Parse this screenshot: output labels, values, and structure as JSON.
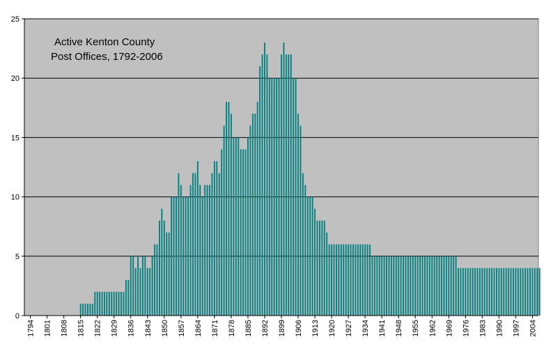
{
  "chart_data": {
    "type": "bar",
    "title_lines": [
      "Active Kenton County",
      "Post Offices, 1792-2006"
    ],
    "xlabel": "",
    "ylabel": "",
    "ylim": [
      0,
      25
    ],
    "yticks": [
      0,
      5,
      10,
      15,
      20,
      25
    ],
    "x_start": 1792,
    "x_end": 2006,
    "xtick_labels": [
      "1794",
      "1801",
      "1808",
      "1815",
      "1822",
      "1829",
      "1836",
      "1843",
      "1850",
      "1857",
      "1864",
      "1871",
      "1878",
      "1885",
      "1892",
      "1899",
      "1906",
      "1913",
      "1920",
      "1927",
      "1934",
      "1941",
      "1948",
      "1955",
      "1962",
      "1969",
      "1976",
      "1983",
      "1990",
      "1997",
      "2004"
    ],
    "grid": true,
    "background_color": "#c0c0c0",
    "bar_color": "#008080",
    "series": [
      {
        "values": [
          0,
          0,
          0,
          0,
          0,
          0,
          0,
          0,
          0,
          0,
          0,
          0,
          0,
          0,
          0,
          0,
          0,
          0,
          0,
          0,
          0,
          0,
          0,
          1,
          1,
          1,
          1,
          1,
          1,
          2,
          2,
          2,
          2,
          2,
          2,
          2,
          2,
          2,
          2,
          2,
          2,
          2,
          3,
          3,
          5,
          5,
          4,
          5,
          4,
          5,
          5,
          4,
          4,
          5,
          6,
          6,
          8,
          9,
          8,
          7,
          7,
          10,
          10,
          10,
          12,
          11,
          10,
          10,
          10,
          11,
          12,
          12,
          13,
          11,
          10,
          11,
          11,
          11,
          12,
          13,
          13,
          12,
          14,
          16,
          18,
          18,
          17,
          15,
          15,
          15,
          14,
          14,
          14,
          15,
          16,
          17,
          17,
          18,
          21,
          22,
          23,
          22,
          20,
          20,
          20,
          20,
          20,
          22,
          23,
          22,
          22,
          22,
          20,
          20,
          17,
          16,
          12,
          11,
          10,
          10,
          10,
          9,
          8,
          8,
          8,
          8,
          7,
          6,
          6,
          6,
          6,
          6,
          6,
          6,
          6,
          6,
          6,
          6,
          6,
          6,
          6,
          6,
          6,
          6,
          6,
          5,
          5,
          5,
          5,
          5,
          5,
          5,
          5,
          5,
          5,
          5,
          5,
          5,
          5,
          5,
          5,
          5,
          5,
          5,
          5,
          5,
          5,
          5,
          5,
          5,
          5,
          5,
          5,
          5,
          5,
          5,
          5,
          5,
          5,
          5,
          5,
          4,
          4,
          4,
          4,
          4,
          4,
          4,
          4,
          4,
          4,
          4,
          4,
          4,
          4,
          4,
          4,
          4,
          4,
          4,
          4,
          4,
          4,
          4,
          4,
          4,
          4,
          4,
          4,
          4,
          4,
          4,
          4,
          4,
          4,
          4
        ]
      }
    ]
  }
}
